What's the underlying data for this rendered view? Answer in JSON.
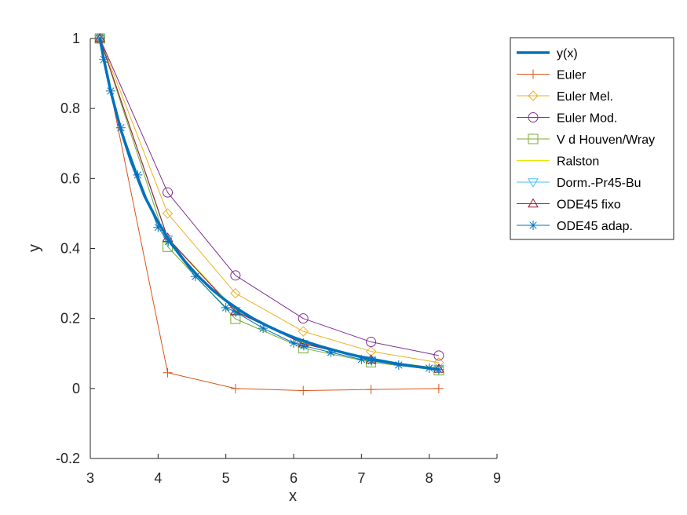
{
  "chart_data": {
    "type": "line",
    "title": "",
    "xlabel": "x",
    "ylabel": "y",
    "xlim": [
      3,
      9
    ],
    "ylim": [
      -0.2,
      1
    ],
    "xticks": [
      "3",
      "4",
      "5",
      "6",
      "7",
      "8",
      "9"
    ],
    "yticks": [
      "-0.2",
      "0",
      "0.2",
      "0.4",
      "0.6",
      "0.8",
      "1"
    ],
    "grid": false,
    "legend_position": "top-right outside",
    "series": [
      {
        "name": "y(x)",
        "color": "#0072bd",
        "marker": "none",
        "width": 3.5,
        "x": [
          3.1416,
          3.2,
          3.3,
          3.45,
          3.6,
          3.8,
          4.0,
          4.2,
          4.4,
          4.6,
          4.8,
          5.0,
          5.2,
          5.4,
          5.6,
          5.8,
          6.0,
          6.2,
          6.4,
          6.6,
          6.8,
          7.0,
          7.2,
          7.4,
          7.6,
          7.8,
          8.0,
          8.1416
        ],
        "y": [
          1.0,
          0.94,
          0.85,
          0.74,
          0.65,
          0.55,
          0.475,
          0.413,
          0.362,
          0.319,
          0.282,
          0.251,
          0.224,
          0.2,
          0.18,
          0.162,
          0.146,
          0.132,
          0.12,
          0.109,
          0.099,
          0.09,
          0.082,
          0.075,
          0.068,
          0.063,
          0.058,
          0.054
        ]
      },
      {
        "name": "Euler",
        "color": "#d95319",
        "marker": "plus",
        "x": [
          3.1416,
          4.1416,
          5.1416,
          6.1416,
          7.1416,
          8.1416
        ],
        "y": [
          1.0,
          0.045,
          0.0,
          -0.006,
          -0.003,
          0.0
        ]
      },
      {
        "name": "Euler Mel.",
        "color": "#edb120",
        "marker": "diamond",
        "x": [
          3.1416,
          4.1416,
          5.1416,
          6.1416,
          7.1416,
          8.1416
        ],
        "y": [
          1.0,
          0.5,
          0.272,
          0.163,
          0.106,
          0.074
        ]
      },
      {
        "name": "Euler Mod.",
        "color": "#7e2f8e",
        "marker": "circle",
        "x": [
          3.1416,
          4.1416,
          5.1416,
          6.1416,
          7.1416,
          8.1416
        ],
        "y": [
          1.0,
          0.56,
          0.323,
          0.2,
          0.133,
          0.094
        ]
      },
      {
        "name": "V d Houven/Wray",
        "color": "#77ac30",
        "marker": "square",
        "x": [
          3.1416,
          4.1416,
          5.1416,
          6.1416,
          7.1416,
          8.1416
        ],
        "y": [
          1.0,
          0.405,
          0.199,
          0.115,
          0.075,
          0.052
        ]
      },
      {
        "name": "Ralston",
        "color": "#e6e600",
        "marker": "none",
        "x": [
          3.1416,
          4.1416,
          5.1416,
          6.1416,
          7.1416,
          8.1416
        ],
        "y": [
          1.0,
          0.43,
          0.225,
          0.13,
          0.083,
          0.058
        ]
      },
      {
        "name": "Dorm.-Pr45-Bu",
        "color": "#4dbeee",
        "marker": "triangle-down",
        "x": [
          3.1416,
          4.1416,
          5.1416,
          6.1416,
          7.1416,
          8.1416
        ],
        "y": [
          1.0,
          0.427,
          0.222,
          0.128,
          0.082,
          0.057
        ]
      },
      {
        "name": "ODE45 fixo",
        "color": "#a2142f",
        "marker": "triangle-up",
        "x": [
          3.1416,
          4.1416,
          5.1416,
          6.1416,
          7.1416,
          8.1416
        ],
        "y": [
          1.0,
          0.43,
          0.22,
          0.128,
          0.082,
          0.056
        ]
      },
      {
        "name": "ODE45 adap.",
        "color": "#0072bd",
        "marker": "asterisk",
        "x": [
          3.1416,
          3.2,
          3.3,
          3.45,
          3.7,
          4.0,
          4.15,
          4.55,
          5.0,
          5.15,
          5.55,
          6.0,
          6.15,
          6.55,
          7.0,
          7.15,
          7.55,
          8.0,
          8.1416
        ],
        "y": [
          1.0,
          0.94,
          0.85,
          0.745,
          0.61,
          0.46,
          0.42,
          0.32,
          0.231,
          0.218,
          0.172,
          0.13,
          0.122,
          0.103,
          0.083,
          0.079,
          0.067,
          0.058,
          0.054
        ]
      }
    ]
  }
}
